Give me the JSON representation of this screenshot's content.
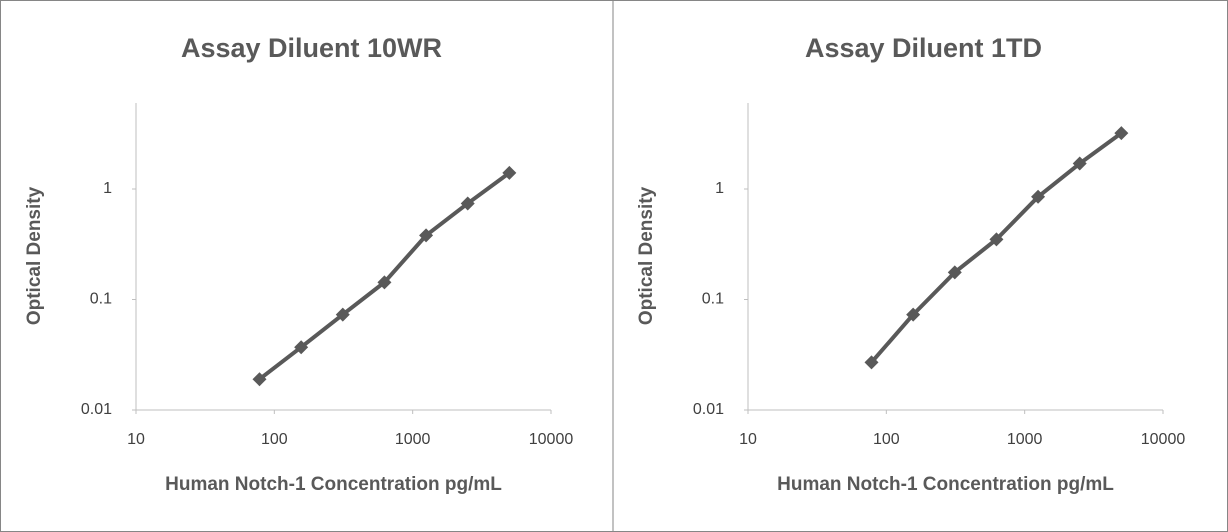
{
  "chart_data": [
    {
      "type": "line",
      "title": "Assay Diluent 10WR",
      "x_label": "Human Notch-1 Concentration pg/mL",
      "y_label": "Optical Density",
      "x": [
        78.125,
        156.25,
        312.5,
        625,
        1250,
        2500,
        5000
      ],
      "values": [
        0.019,
        0.037,
        0.073,
        0.143,
        0.38,
        0.74,
        1.4
      ],
      "color": "#595959",
      "xscale": "log",
      "yscale": "log",
      "xlim": [
        10,
        10000
      ],
      "ylim": [
        0.01,
        6
      ],
      "xticks": [
        10,
        100,
        1000,
        10000
      ],
      "yticks": [
        0.01,
        0.1,
        1
      ],
      "grid": false
    },
    {
      "type": "line",
      "title": "Assay Diluent 1TD",
      "x_label": "Human Notch-1 Concentration pg/mL",
      "y_label": "Optical Density",
      "x": [
        78.125,
        156.25,
        312.5,
        625,
        1250,
        2500,
        5000
      ],
      "values": [
        0.027,
        0.073,
        0.176,
        0.35,
        0.85,
        1.7,
        3.2
      ],
      "color": "#595959",
      "xscale": "log",
      "yscale": "log",
      "xlim": [
        10,
        10000
      ],
      "ylim": [
        0.01,
        6
      ],
      "xticks": [
        10,
        100,
        1000,
        10000
      ],
      "yticks": [
        0.01,
        0.1,
        1
      ],
      "grid": false
    }
  ]
}
